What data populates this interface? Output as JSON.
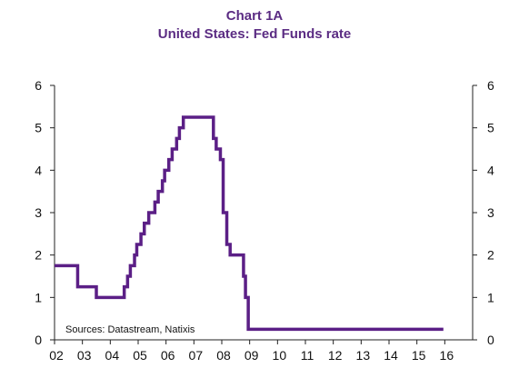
{
  "header": {
    "title": "Chart 1A",
    "subtitle": "United States: Fed Funds rate"
  },
  "source_note": "Sources: Datastream, Natixis",
  "colors": {
    "title": "#5b2c83",
    "series": "#5b1f86",
    "axis": "#222222"
  },
  "chart_data": {
    "type": "line",
    "title": "Chart 1A",
    "subtitle": "United States: Fed Funds rate",
    "xlabel": "",
    "ylabel": "",
    "x_tick_labels": [
      "02",
      "03",
      "04",
      "05",
      "06",
      "07",
      "08",
      "09",
      "10",
      "11",
      "12",
      "13",
      "14",
      "15",
      "16"
    ],
    "y_ticks": [
      0,
      1,
      2,
      3,
      4,
      5,
      6
    ],
    "xlim": [
      2002.0,
      2017.0
    ],
    "ylim": [
      0,
      6
    ],
    "grid": false,
    "dual_y_axis": true,
    "series": [
      {
        "points": [
          [
            2002.0,
            1.75
          ],
          [
            2002.83,
            1.75
          ],
          [
            2002.83,
            1.25
          ],
          [
            2003.5,
            1.25
          ],
          [
            2003.5,
            1.0
          ],
          [
            2004.5,
            1.0
          ],
          [
            2004.5,
            1.25
          ],
          [
            2004.62,
            1.25
          ],
          [
            2004.62,
            1.5
          ],
          [
            2004.72,
            1.5
          ],
          [
            2004.72,
            1.75
          ],
          [
            2004.87,
            1.75
          ],
          [
            2004.87,
            2.0
          ],
          [
            2004.95,
            2.0
          ],
          [
            2004.95,
            2.25
          ],
          [
            2005.1,
            2.25
          ],
          [
            2005.1,
            2.5
          ],
          [
            2005.22,
            2.5
          ],
          [
            2005.22,
            2.75
          ],
          [
            2005.38,
            2.75
          ],
          [
            2005.38,
            3.0
          ],
          [
            2005.6,
            3.0
          ],
          [
            2005.6,
            3.25
          ],
          [
            2005.72,
            3.25
          ],
          [
            2005.72,
            3.5
          ],
          [
            2005.87,
            3.5
          ],
          [
            2005.87,
            3.75
          ],
          [
            2005.95,
            3.75
          ],
          [
            2005.95,
            4.0
          ],
          [
            2006.1,
            4.0
          ],
          [
            2006.1,
            4.25
          ],
          [
            2006.22,
            4.25
          ],
          [
            2006.22,
            4.5
          ],
          [
            2006.38,
            4.5
          ],
          [
            2006.38,
            4.75
          ],
          [
            2006.48,
            4.75
          ],
          [
            2006.48,
            5.0
          ],
          [
            2006.62,
            5.0
          ],
          [
            2006.62,
            5.25
          ],
          [
            2007.7,
            5.25
          ],
          [
            2007.7,
            4.75
          ],
          [
            2007.8,
            4.75
          ],
          [
            2007.8,
            4.5
          ],
          [
            2007.95,
            4.5
          ],
          [
            2007.95,
            4.25
          ],
          [
            2008.05,
            4.25
          ],
          [
            2008.05,
            3.0
          ],
          [
            2008.18,
            3.0
          ],
          [
            2008.18,
            2.25
          ],
          [
            2008.3,
            2.25
          ],
          [
            2008.3,
            2.0
          ],
          [
            2008.78,
            2.0
          ],
          [
            2008.78,
            1.5
          ],
          [
            2008.85,
            1.5
          ],
          [
            2008.85,
            1.0
          ],
          [
            2008.95,
            1.0
          ],
          [
            2008.95,
            0.25
          ],
          [
            2015.95,
            0.25
          ]
        ]
      }
    ]
  }
}
